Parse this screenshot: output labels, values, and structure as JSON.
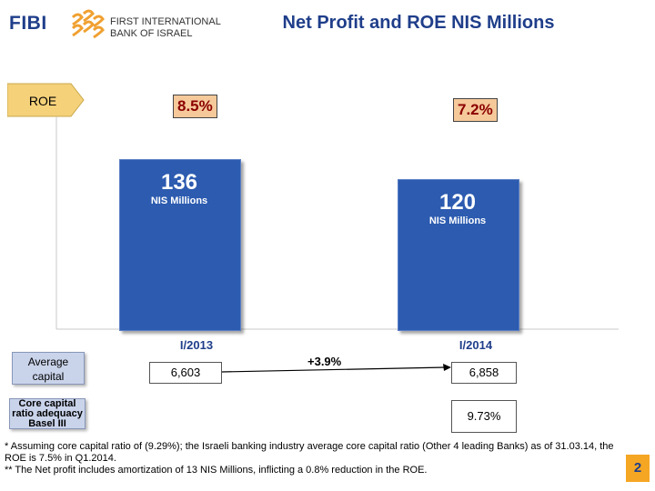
{
  "logo": {
    "short": "FIBI",
    "line1": "FIRST INTERNATIONAL",
    "line2": "BANK OF ISRAEL"
  },
  "title": "Net Profit and ROE NIS Millions",
  "roe_label": "ROE",
  "chart_data": {
    "type": "bar",
    "title": "Net Profit and ROE NIS Millions",
    "categories": [
      "I/2013",
      "I/2014"
    ],
    "values": [
      136,
      120
    ],
    "unit": "NIS Millions",
    "roe": [
      "8.5%",
      "7.2%"
    ],
    "ylim": [
      0,
      170
    ],
    "xlabel": "",
    "ylabel": ""
  },
  "rows": {
    "avg_capital": {
      "label": "Average capital",
      "values": [
        "6,603",
        "6,858"
      ],
      "change": "+3.9%"
    },
    "core_capital": {
      "label": "Core capital ratio adequacy Basel III",
      "value": "9.73%"
    }
  },
  "footnotes": [
    "* Assuming  core capital ratio of (9.29%); the Israeli  banking  industry average core capital ratio (Other  4 leading Banks) as of 31.03.14, the ROE is 7.5% in Q1.2014.",
    "** The Net profit includes amortization of 13 NIS Millions, inflicting a 0.8% reduction in the ROE."
  ],
  "page_number": "2",
  "colors": {
    "bar": "#2c5bb0",
    "title": "#1f3e8a",
    "roe_box": "#f5c99a",
    "arrow": "#f5d17a"
  }
}
